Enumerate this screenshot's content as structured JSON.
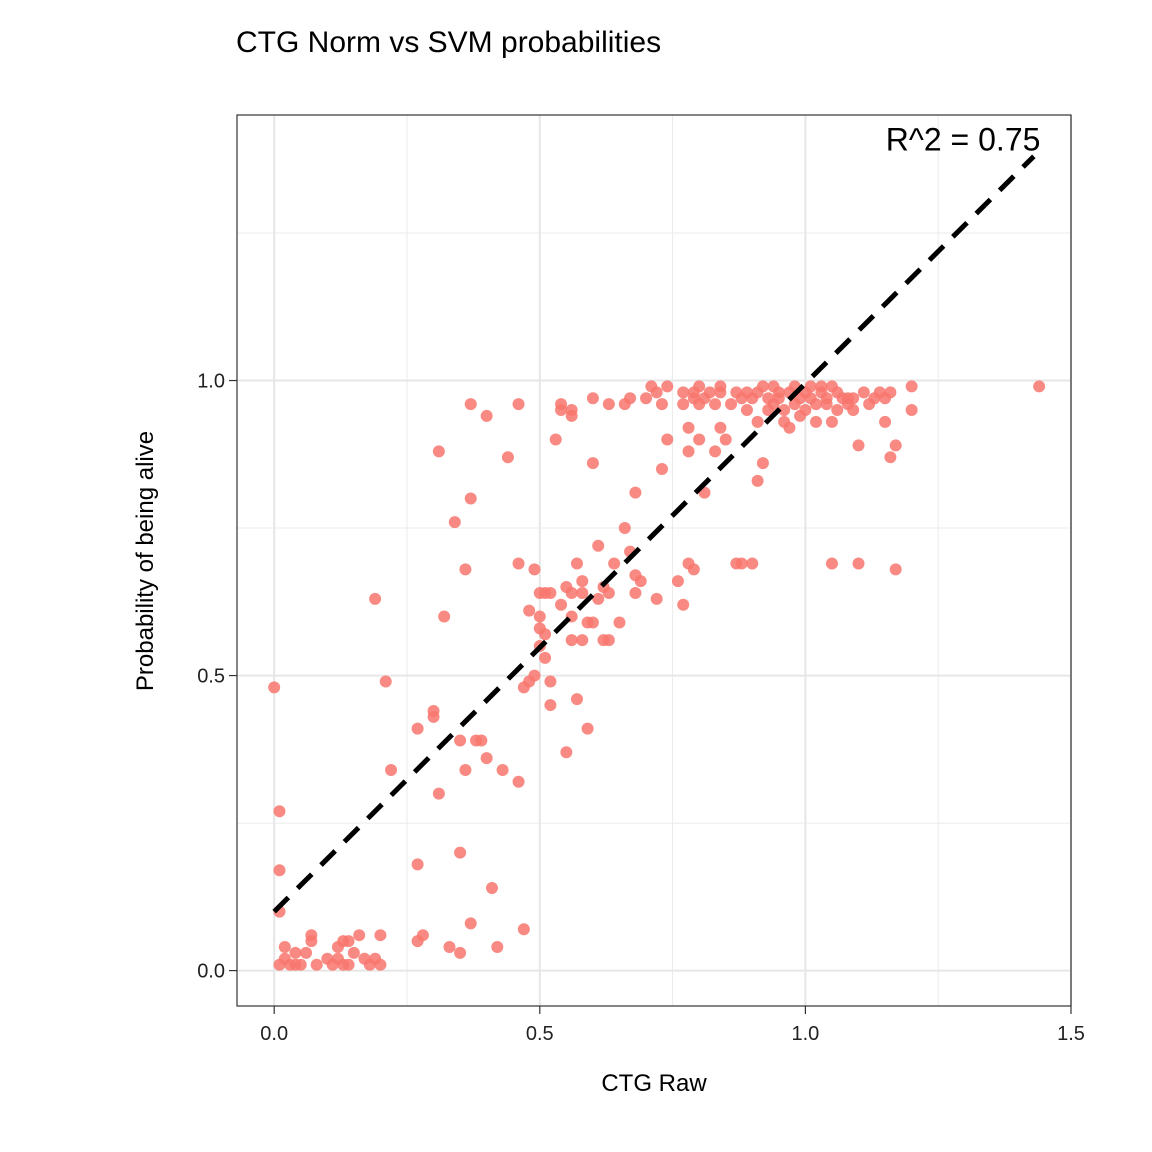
{
  "chart_data": {
    "type": "scatter",
    "title": "CTG Norm vs SVM probabilities",
    "xlabel": "CTG Raw",
    "ylabel": "Probability of being alive",
    "xlim": [
      -0.07,
      1.5
    ],
    "ylim": [
      -0.06,
      1.45
    ],
    "x_ticks": [
      0.0,
      0.5,
      1.0,
      1.5
    ],
    "x_tick_labels": [
      "0.0",
      "0.5",
      "1.0",
      "1.5"
    ],
    "y_ticks": [
      0.0,
      0.5,
      1.0
    ],
    "y_tick_labels": [
      "0.0",
      "0.5",
      "1.0"
    ],
    "x_minor_grid": [
      0.25,
      0.75,
      1.25
    ],
    "y_minor_grid": [
      0.25,
      0.75,
      1.25
    ],
    "grid": true,
    "annotation": {
      "text": "R^2 = 0.75",
      "x": 1.15,
      "y": 1.41
    },
    "fit_line": {
      "x": [
        0.0,
        1.43
      ],
      "y": [
        0.1,
        1.38
      ],
      "style": "dashed",
      "color": "#000000"
    },
    "point_color": "#f8766d",
    "points": [
      [
        0.0,
        0.48
      ],
      [
        0.01,
        0.27
      ],
      [
        0.01,
        0.17
      ],
      [
        0.01,
        0.1
      ],
      [
        0.01,
        0.01
      ],
      [
        0.02,
        0.04
      ],
      [
        0.02,
        0.02
      ],
      [
        0.03,
        0.01
      ],
      [
        0.04,
        0.01
      ],
      [
        0.04,
        0.03
      ],
      [
        0.05,
        0.01
      ],
      [
        0.06,
        0.03
      ],
      [
        0.07,
        0.05
      ],
      [
        0.07,
        0.06
      ],
      [
        0.08,
        0.01
      ],
      [
        0.1,
        0.02
      ],
      [
        0.11,
        0.01
      ],
      [
        0.12,
        0.02
      ],
      [
        0.12,
        0.04
      ],
      [
        0.13,
        0.05
      ],
      [
        0.13,
        0.01
      ],
      [
        0.14,
        0.01
      ],
      [
        0.14,
        0.05
      ],
      [
        0.15,
        0.03
      ],
      [
        0.16,
        0.06
      ],
      [
        0.17,
        0.02
      ],
      [
        0.18,
        0.01
      ],
      [
        0.19,
        0.02
      ],
      [
        0.2,
        0.01
      ],
      [
        0.2,
        0.06
      ],
      [
        0.19,
        0.63
      ],
      [
        0.21,
        0.49
      ],
      [
        0.22,
        0.34
      ],
      [
        0.27,
        0.41
      ],
      [
        0.27,
        0.18
      ],
      [
        0.27,
        0.05
      ],
      [
        0.28,
        0.06
      ],
      [
        0.3,
        0.44
      ],
      [
        0.3,
        0.43
      ],
      [
        0.31,
        0.3
      ],
      [
        0.31,
        0.88
      ],
      [
        0.32,
        0.6
      ],
      [
        0.33,
        0.04
      ],
      [
        0.34,
        0.76
      ],
      [
        0.35,
        0.39
      ],
      [
        0.35,
        0.2
      ],
      [
        0.35,
        0.03
      ],
      [
        0.36,
        0.68
      ],
      [
        0.36,
        0.34
      ],
      [
        0.37,
        0.8
      ],
      [
        0.37,
        0.96
      ],
      [
        0.37,
        0.08
      ],
      [
        0.38,
        0.39
      ],
      [
        0.39,
        0.39
      ],
      [
        0.4,
        0.94
      ],
      [
        0.4,
        0.36
      ],
      [
        0.41,
        0.14
      ],
      [
        0.42,
        0.04
      ],
      [
        0.43,
        0.34
      ],
      [
        0.44,
        0.87
      ],
      [
        0.46,
        0.96
      ],
      [
        0.46,
        0.69
      ],
      [
        0.46,
        0.32
      ],
      [
        0.47,
        0.07
      ],
      [
        0.47,
        0.48
      ],
      [
        0.48,
        0.61
      ],
      [
        0.48,
        0.49
      ],
      [
        0.49,
        0.68
      ],
      [
        0.49,
        0.5
      ],
      [
        0.5,
        0.6
      ],
      [
        0.5,
        0.64
      ],
      [
        0.5,
        0.58
      ],
      [
        0.5,
        0.55
      ],
      [
        0.51,
        0.64
      ],
      [
        0.51,
        0.57
      ],
      [
        0.51,
        0.53
      ],
      [
        0.52,
        0.49
      ],
      [
        0.52,
        0.45
      ],
      [
        0.52,
        0.64
      ],
      [
        0.53,
        0.9
      ],
      [
        0.54,
        0.96
      ],
      [
        0.54,
        0.95
      ],
      [
        0.54,
        0.62
      ],
      [
        0.55,
        0.65
      ],
      [
        0.55,
        0.37
      ],
      [
        0.56,
        0.94
      ],
      [
        0.56,
        0.95
      ],
      [
        0.56,
        0.64
      ],
      [
        0.56,
        0.56
      ],
      [
        0.56,
        0.6
      ],
      [
        0.57,
        0.69
      ],
      [
        0.57,
        0.46
      ],
      [
        0.58,
        0.64
      ],
      [
        0.58,
        0.66
      ],
      [
        0.58,
        0.56
      ],
      [
        0.59,
        0.59
      ],
      [
        0.59,
        0.41
      ],
      [
        0.6,
        0.97
      ],
      [
        0.6,
        0.86
      ],
      [
        0.6,
        0.59
      ],
      [
        0.61,
        0.72
      ],
      [
        0.61,
        0.63
      ],
      [
        0.62,
        0.56
      ],
      [
        0.62,
        0.65
      ],
      [
        0.63,
        0.96
      ],
      [
        0.63,
        0.64
      ],
      [
        0.63,
        0.56
      ],
      [
        0.64,
        0.69
      ],
      [
        0.65,
        0.59
      ],
      [
        0.66,
        0.75
      ],
      [
        0.66,
        0.96
      ],
      [
        0.67,
        0.97
      ],
      [
        0.67,
        0.71
      ],
      [
        0.68,
        0.81
      ],
      [
        0.68,
        0.67
      ],
      [
        0.68,
        0.64
      ],
      [
        0.69,
        0.66
      ],
      [
        0.7,
        0.97
      ],
      [
        0.71,
        0.99
      ],
      [
        0.72,
        0.98
      ],
      [
        0.72,
        0.63
      ],
      [
        0.73,
        0.85
      ],
      [
        0.73,
        0.96
      ],
      [
        0.74,
        0.99
      ],
      [
        0.74,
        0.9
      ],
      [
        0.76,
        0.66
      ],
      [
        0.77,
        0.98
      ],
      [
        0.77,
        0.96
      ],
      [
        0.77,
        0.62
      ],
      [
        0.78,
        0.92
      ],
      [
        0.78,
        0.88
      ],
      [
        0.78,
        0.69
      ],
      [
        0.79,
        0.97
      ],
      [
        0.79,
        0.98
      ],
      [
        0.79,
        0.68
      ],
      [
        0.8,
        0.99
      ],
      [
        0.8,
        0.96
      ],
      [
        0.8,
        0.9
      ],
      [
        0.81,
        0.97
      ],
      [
        0.81,
        0.81
      ],
      [
        0.82,
        0.98
      ],
      [
        0.83,
        0.96
      ],
      [
        0.83,
        0.88
      ],
      [
        0.84,
        0.98
      ],
      [
        0.84,
        0.99
      ],
      [
        0.84,
        0.92
      ],
      [
        0.85,
        0.9
      ],
      [
        0.86,
        0.96
      ],
      [
        0.87,
        0.69
      ],
      [
        0.87,
        0.98
      ],
      [
        0.88,
        0.97
      ],
      [
        0.88,
        0.69
      ],
      [
        0.89,
        0.98
      ],
      [
        0.89,
        0.95
      ],
      [
        0.9,
        0.97
      ],
      [
        0.9,
        0.69
      ],
      [
        0.91,
        0.98
      ],
      [
        0.91,
        0.93
      ],
      [
        0.91,
        0.83
      ],
      [
        0.92,
        0.99
      ],
      [
        0.92,
        0.86
      ],
      [
        0.93,
        0.97
      ],
      [
        0.93,
        0.95
      ],
      [
        0.94,
        0.99
      ],
      [
        0.94,
        0.96
      ],
      [
        0.95,
        0.97
      ],
      [
        0.95,
        0.98
      ],
      [
        0.96,
        0.93
      ],
      [
        0.96,
        0.95
      ],
      [
        0.97,
        0.92
      ],
      [
        0.97,
        0.98
      ],
      [
        0.98,
        0.96
      ],
      [
        0.98,
        0.99
      ],
      [
        0.99,
        0.94
      ],
      [
        0.99,
        0.97
      ],
      [
        1.0,
        0.98
      ],
      [
        1.0,
        0.95
      ],
      [
        1.01,
        0.99
      ],
      [
        1.01,
        0.97
      ],
      [
        1.02,
        0.96
      ],
      [
        1.02,
        0.93
      ],
      [
        1.03,
        0.98
      ],
      [
        1.03,
        0.99
      ],
      [
        1.04,
        0.96
      ],
      [
        1.04,
        0.97
      ],
      [
        1.05,
        0.99
      ],
      [
        1.05,
        0.69
      ],
      [
        1.05,
        0.93
      ],
      [
        1.06,
        0.98
      ],
      [
        1.06,
        0.95
      ],
      [
        1.07,
        0.97
      ],
      [
        1.08,
        0.96
      ],
      [
        1.08,
        0.97
      ],
      [
        1.09,
        0.95
      ],
      [
        1.09,
        0.97
      ],
      [
        1.1,
        0.89
      ],
      [
        1.1,
        0.69
      ],
      [
        1.11,
        0.98
      ],
      [
        1.12,
        0.96
      ],
      [
        1.13,
        0.97
      ],
      [
        1.14,
        0.98
      ],
      [
        1.15,
        0.97
      ],
      [
        1.15,
        0.93
      ],
      [
        1.16,
        0.87
      ],
      [
        1.16,
        0.98
      ],
      [
        1.17,
        0.68
      ],
      [
        1.17,
        0.89
      ],
      [
        1.2,
        0.99
      ],
      [
        1.2,
        0.95
      ],
      [
        1.44,
        0.99
      ]
    ]
  }
}
